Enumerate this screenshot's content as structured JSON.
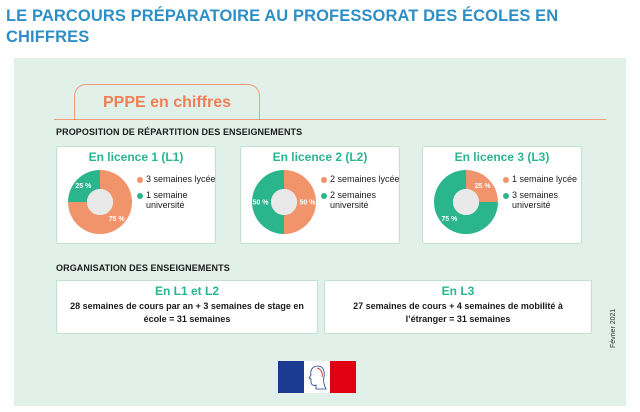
{
  "title": "LE PARCOURS PRÉPARATOIRE AU PROFESSORAT DES ÉCOLES EN CHIFFRES",
  "ppe_header": "PPPE en chiffres",
  "section1_title": "PROPOSITION DE RÉPARTITION DES ENSEIGNEMENTS",
  "section2_title": "ORGANISATION DES ENSEIGNEMENTS",
  "date": "Février 2021",
  "colors": {
    "orange": "#f2946b",
    "green": "#2bb58c",
    "title_blue": "#2e8fc7"
  },
  "chart_data": [
    {
      "type": "pie",
      "title": "En licence 1 (L1)",
      "slices": [
        {
          "label": "3 semaines lycée",
          "value": 75,
          "display": "75 %",
          "color": "#f2946b"
        },
        {
          "label": "1 semaine université",
          "value": 25,
          "display": "25 %",
          "color": "#2bb58c"
        }
      ]
    },
    {
      "type": "pie",
      "title": "En licence 2 (L2)",
      "slices": [
        {
          "label": "2 semaines lycée",
          "value": 50,
          "display": "50 %",
          "color": "#f2946b"
        },
        {
          "label": "2 semaines université",
          "value": 50,
          "display": "50 %",
          "color": "#2bb58c"
        }
      ]
    },
    {
      "type": "pie",
      "title": "En licence 3 (L3)",
      "slices": [
        {
          "label": "1 semaine lycée",
          "value": 25,
          "display": "25 %",
          "color": "#f2946b"
        },
        {
          "label": "3 semaines université",
          "value": 75,
          "display": "75 %",
          "color": "#2bb58c"
        }
      ]
    }
  ],
  "organisation": [
    {
      "title": "En L1 et L2",
      "text": "28 semaines de cours par an + 3 semaines de stage en école = 31 semaines"
    },
    {
      "title": "En L3",
      "text": "27 semaines de cours + 4 semaines de mobilité à l’étranger = 31 semaines"
    }
  ]
}
